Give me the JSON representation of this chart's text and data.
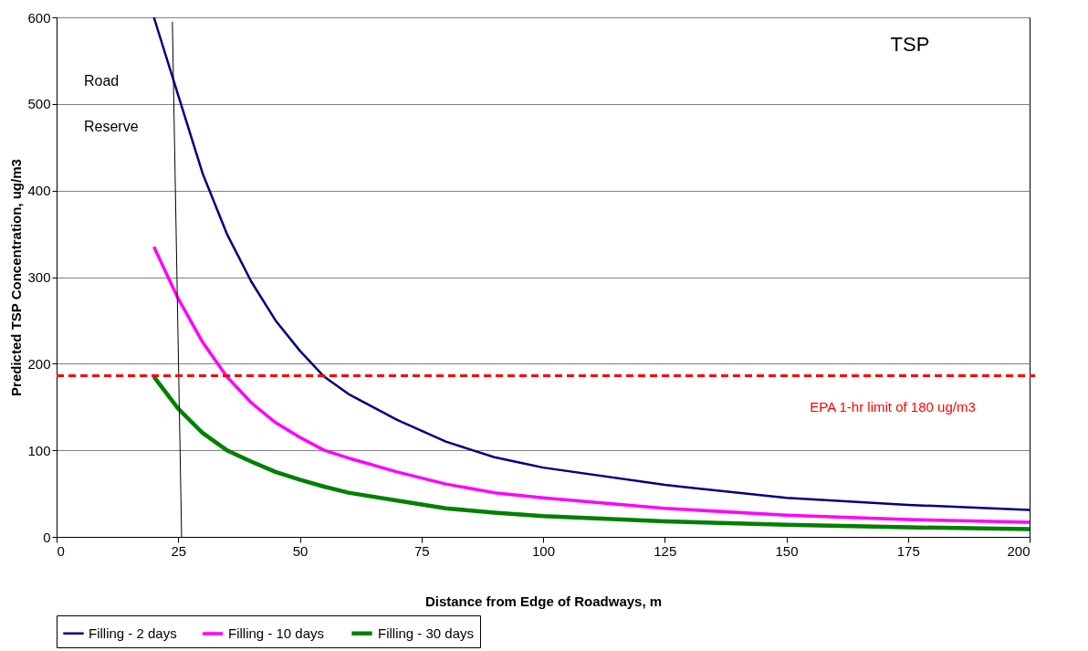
{
  "chart_data": {
    "type": "line",
    "xlabel": "Distance from Edge of Roadways, m",
    "ylabel": "Predicted TSP Concentration, ug/m3",
    "xlim": [
      0,
      200
    ],
    "xticks": [
      0,
      25,
      50,
      75,
      100,
      125,
      150,
      175,
      200
    ],
    "ylim": [
      0,
      600
    ],
    "yticks": [
      0,
      100,
      200,
      300,
      400,
      500,
      600
    ],
    "grid": "y",
    "legend": "bottom",
    "line_style": "solid",
    "marker": "none",
    "annotations": [
      "TSP",
      "Road",
      "Reserve"
    ],
    "ref_lines": [
      {
        "axis": "y",
        "value": 186,
        "label": "EPA 1-hr limit of 180 ug/m3",
        "color": "#ff0000",
        "line_style": "dashed"
      }
    ],
    "series": [
      {
        "name": "Filling - 2 days",
        "color": "#000080",
        "x": [
          20,
          25,
          30,
          35,
          40,
          45,
          50,
          55,
          60,
          70,
          80,
          90,
          100,
          125,
          150,
          175,
          200
        ],
        "values": [
          600,
          510,
          420,
          350,
          295,
          250,
          215,
          185,
          165,
          135,
          110,
          92,
          80,
          60,
          45,
          37,
          31
        ]
      },
      {
        "name": "Filling - 10 days",
        "color": "#ff00ff",
        "x": [
          20,
          25,
          30,
          35,
          40,
          45,
          50,
          55,
          60,
          70,
          80,
          90,
          100,
          125,
          150,
          175,
          200
        ],
        "values": [
          335,
          275,
          225,
          185,
          155,
          132,
          115,
          100,
          91,
          75,
          61,
          51,
          45,
          33,
          25,
          20,
          17
        ]
      },
      {
        "name": "Filling - 30 days",
        "color": "#008000",
        "x": [
          20,
          25,
          30,
          35,
          40,
          45,
          50,
          55,
          60,
          70,
          80,
          90,
          100,
          125,
          150,
          175,
          200
        ],
        "values": [
          185,
          148,
          120,
          100,
          87,
          75,
          66,
          58,
          51,
          42,
          33,
          28,
          24,
          18,
          14,
          11,
          9
        ]
      },
      {
        "color": "#000000",
        "x": [
          23.8,
          25.7
        ],
        "values": [
          595,
          0
        ]
      }
    ]
  }
}
